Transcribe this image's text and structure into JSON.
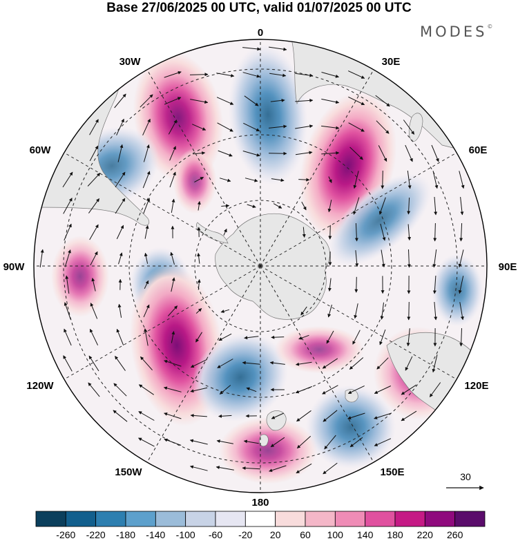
{
  "title": "Base 27/06/2025 00 UTC, valid 01/07/2025 00 UTC",
  "brand": "MODES",
  "brand_mark": "©",
  "longitude_labels": {
    "lon_0": "0",
    "lon_30e": "30E",
    "lon_60e": "60E",
    "lon_90e": "90E",
    "lon_120e": "120E",
    "lon_150e": "150E",
    "lon_180": "180",
    "lon_150w": "150W",
    "lon_120w": "120W",
    "lon_90w": "90W",
    "lon_60w": "60W",
    "lon_30w": "30W"
  },
  "vector_reference": {
    "value": "30"
  },
  "colorbar": {
    "colors": [
      "#0b3f5c",
      "#125f8d",
      "#2d7fb0",
      "#5da0cc",
      "#9bbcd9",
      "#c8d3e6",
      "#e6e6f2",
      "#ffffff",
      "#f8dcdc",
      "#f4b7c8",
      "#ef8cb6",
      "#e0519f",
      "#c51a85",
      "#8f0a7d",
      "#5a0c6b"
    ],
    "ticks": [
      "-260",
      "-220",
      "-180",
      "-140",
      "-100",
      "-60",
      "-20",
      "20",
      "60",
      "100",
      "140",
      "180",
      "220",
      "260"
    ]
  },
  "anomaly_centers": [
    {
      "sign": "positive",
      "intensity": 0.85
    },
    {
      "sign": "negative",
      "intensity": 0.75
    },
    {
      "sign": "positive",
      "intensity": 0.95
    },
    {
      "sign": "negative",
      "intensity": 0.55
    },
    {
      "sign": "negative",
      "intensity": 0.55
    },
    {
      "sign": "negative",
      "intensity": 0.55
    },
    {
      "sign": "positive",
      "intensity": 0.45
    },
    {
      "sign": "negative",
      "intensity": 0.55
    },
    {
      "sign": "positive",
      "intensity": 0.95
    },
    {
      "sign": "negative",
      "intensity": 0.75
    },
    {
      "sign": "positive",
      "intensity": 0.35
    },
    {
      "sign": "negative",
      "intensity": 0.7
    },
    {
      "sign": "positive",
      "intensity": 0.45
    },
    {
      "sign": "positive",
      "intensity": 0.45
    },
    {
      "sign": "positive",
      "intensity": 0.3
    }
  ]
}
